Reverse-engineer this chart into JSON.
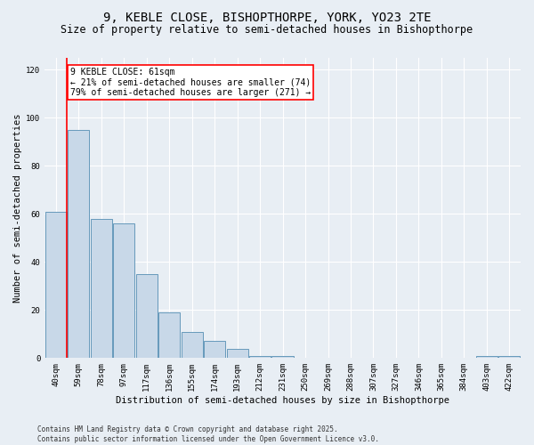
{
  "title": "9, KEBLE CLOSE, BISHOPTHORPE, YORK, YO23 2TE",
  "subtitle": "Size of property relative to semi-detached houses in Bishopthorpe",
  "xlabel": "Distribution of semi-detached houses by size in Bishopthorpe",
  "ylabel": "Number of semi-detached properties",
  "categories": [
    "40sqm",
    "59sqm",
    "78sqm",
    "97sqm",
    "117sqm",
    "136sqm",
    "155sqm",
    "174sqm",
    "193sqm",
    "212sqm",
    "231sqm",
    "250sqm",
    "269sqm",
    "288sqm",
    "307sqm",
    "327sqm",
    "346sqm",
    "365sqm",
    "384sqm",
    "403sqm",
    "422sqm"
  ],
  "values": [
    61,
    95,
    58,
    56,
    35,
    19,
    11,
    7,
    4,
    1,
    1,
    0,
    0,
    0,
    0,
    0,
    0,
    0,
    0,
    1,
    1
  ],
  "bar_color": "#c8d8e8",
  "bar_edge_color": "#6699bb",
  "annotation_text": "9 KEBLE CLOSE: 61sqm\n← 21% of semi-detached houses are smaller (74)\n79% of semi-detached houses are larger (271) →",
  "annotation_box_color": "white",
  "annotation_box_edge": "red",
  "ylim": [
    0,
    125
  ],
  "yticks": [
    0,
    20,
    40,
    60,
    80,
    100,
    120
  ],
  "background_color": "#e8eef4",
  "footer": "Contains HM Land Registry data © Crown copyright and database right 2025.\nContains public sector information licensed under the Open Government Licence v3.0.",
  "title_fontsize": 10,
  "subtitle_fontsize": 8.5,
  "axis_label_fontsize": 7.5,
  "tick_fontsize": 6.5,
  "annotation_fontsize": 7,
  "footer_fontsize": 5.5
}
